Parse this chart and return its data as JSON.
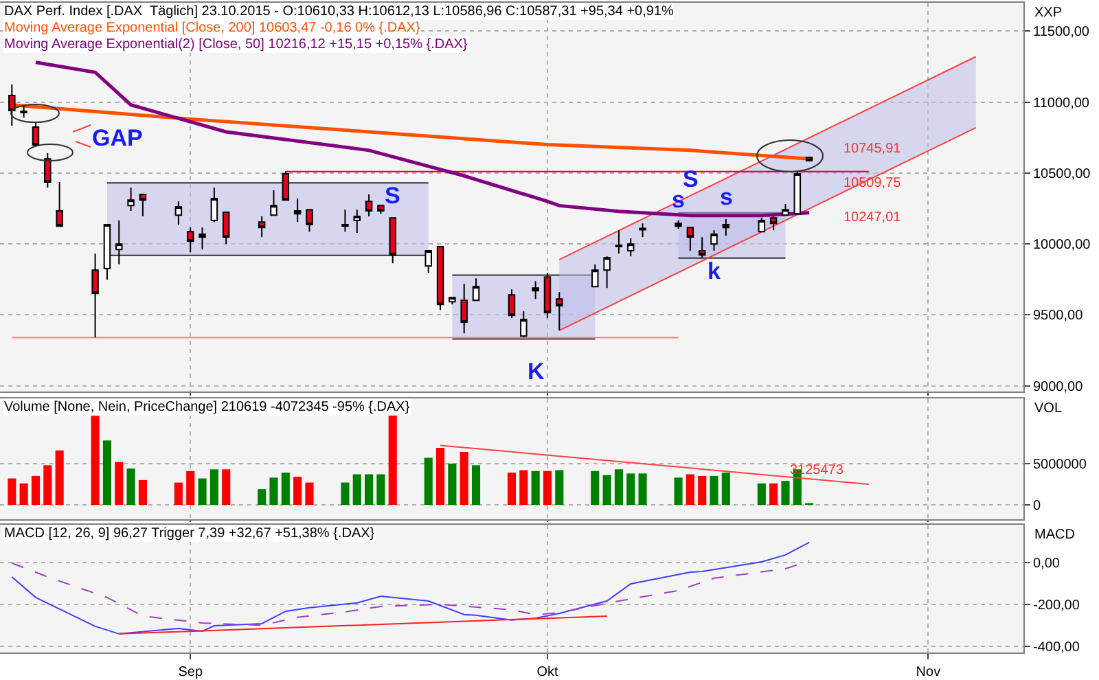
{
  "chart_data": [
    {
      "type": "candlestick",
      "title": "DAX Perf. Index [.DAX  Täglich] 23.10.2015 - O:10610,33 H:10612,13 L:10586,96 C:10587,31 +95,34 +0,91%",
      "ylabel": "XXP",
      "x": [
        "2015-08-17",
        "2015-08-18",
        "2015-08-19",
        "2015-08-20",
        "2015-08-21",
        "2015-08-24",
        "2015-08-25",
        "2015-08-26",
        "2015-08-27",
        "2015-08-28",
        "2015-08-31",
        "2015-09-01",
        "2015-09-02",
        "2015-09-03",
        "2015-09-04",
        "2015-09-07",
        "2015-09-08",
        "2015-09-09",
        "2015-09-10",
        "2015-09-11",
        "2015-09-14",
        "2015-09-15",
        "2015-09-16",
        "2015-09-17",
        "2015-09-18",
        "2015-09-21",
        "2015-09-22",
        "2015-09-23",
        "2015-09-24",
        "2015-09-25",
        "2015-09-28",
        "2015-09-29",
        "2015-09-30",
        "2015-10-01",
        "2015-10-02",
        "2015-10-05",
        "2015-10-06",
        "2015-10-07",
        "2015-10-08",
        "2015-10-09",
        "2015-10-12",
        "2015-10-13",
        "2015-10-14",
        "2015-10-15",
        "2015-10-16",
        "2015-10-19",
        "2015-10-20",
        "2015-10-21",
        "2015-10-22",
        "2015-10-23"
      ],
      "ohlc": [
        [
          11047,
          11124,
          10833,
          10940
        ],
        [
          10935,
          10980,
          10890,
          10925
        ],
        [
          10824,
          10862,
          10690,
          10698
        ],
        [
          10600,
          10640,
          10397,
          10436
        ],
        [
          10233,
          10436,
          10126,
          10126
        ],
        [
          9816,
          9932,
          9341,
          9651
        ],
        [
          9826,
          10136,
          9748,
          10136
        ],
        [
          9961,
          10165,
          9855,
          10000
        ],
        [
          10271,
          10397,
          10233,
          10310
        ],
        [
          10349,
          10349,
          10194,
          10310
        ],
        [
          10203,
          10300,
          10136,
          10262
        ],
        [
          10087,
          10116,
          9942,
          10019
        ],
        [
          10068,
          10116,
          9961,
          10048
        ],
        [
          10165,
          10397,
          10155,
          10320
        ],
        [
          10223,
          10223,
          10000,
          10048
        ],
        [
          10155,
          10194,
          10048,
          10116
        ],
        [
          10203,
          10378,
          10203,
          10271
        ],
        [
          10494,
          10514,
          10310,
          10310
        ],
        [
          10233,
          10320,
          10155,
          10213
        ],
        [
          10242,
          10242,
          10087,
          10136
        ],
        [
          10136,
          10242,
          10087,
          10126
        ],
        [
          10165,
          10242,
          10078,
          10194
        ],
        [
          10300,
          10349,
          10194,
          10233
        ],
        [
          10271,
          10271,
          10213,
          10233
        ],
        [
          10184,
          10184,
          9864,
          9922
        ],
        [
          9845,
          9952,
          9797,
          9952
        ],
        [
          9981,
          9981,
          9535,
          9574
        ],
        [
          9593,
          9622,
          9574,
          9622
        ],
        [
          9603,
          9719,
          9370,
          9448
        ],
        [
          9603,
          9758,
          9603,
          9700
        ],
        [
          9641,
          9680,
          9477,
          9496
        ],
        [
          9351,
          9525,
          9341,
          9467
        ],
        [
          9690,
          9738,
          9612,
          9670
        ],
        [
          9767,
          9796,
          9477,
          9515
        ],
        [
          9612,
          9661,
          9390,
          9564
        ],
        [
          9700,
          9855,
          9700,
          9816
        ],
        [
          9816,
          9913,
          9690,
          9903
        ],
        [
          9990,
          10097,
          9932,
          9981
        ],
        [
          9952,
          10039,
          9913,
          10000
        ],
        [
          10100,
          10145,
          10048,
          10110
        ],
        [
          10145,
          10165,
          10107,
          10126
        ],
        [
          10116,
          10116,
          9952,
          10048
        ],
        [
          9952,
          10048,
          9903,
          9922
        ],
        [
          10000,
          10097,
          9952,
          10068
        ],
        [
          10136,
          10175,
          10058,
          10116
        ],
        [
          10087,
          10184,
          10087,
          10165
        ],
        [
          10184,
          10194,
          10097,
          10145
        ],
        [
          10203,
          10281,
          10203,
          10242
        ],
        [
          10213,
          10510,
          10213,
          10494
        ],
        [
          10610,
          10612,
          10587,
          10587
        ]
      ],
      "series": [
        {
          "type": "line",
          "x": [
            "2015-08-25",
            "2015-09-21"
          ],
          "values": [
            10430,
            10430
          ],
          "lower": [
            9920,
            9920
          ],
          "upper": [
            10430,
            10430
          ],
          "color": "#333333"
        },
        {
          "type": "line",
          "x": [
            "2015-09-23",
            "2015-10-05"
          ],
          "values": [
            9780,
            9780
          ],
          "lower": [
            9330,
            9330
          ],
          "upper": [
            9780,
            9780
          ],
          "color": "#333333"
        },
        {
          "type": "line",
          "x": [
            "2015-10-12",
            "2015-10-21"
          ],
          "values": [
            10220,
            10220
          ],
          "lower": [
            9900,
            9900
          ],
          "upper": [
            10220,
            10220
          ],
          "color": "#333333"
        },
        {
          "type": "line",
          "x": [
            "2015-10-02",
            "2015-11-06"
          ],
          "values": [
            9890,
            11320
          ],
          "lower": [
            9390,
            10820
          ],
          "upper": [
            9890,
            11320
          ],
          "color": "#ff4040"
        },
        {
          "type": "line",
          "x": [
            "2015-08-25",
            "2015-09-21"
          ],
          "values": [
            9920,
            9920
          ],
          "color": "#333333"
        },
        {
          "type": "line",
          "x": [
            "2015-09-23",
            "2015-10-05"
          ],
          "values": [
            9330,
            9330
          ],
          "color": "#333333"
        },
        {
          "type": "line",
          "x": [
            "2015-10-12",
            "2015-10-21"
          ],
          "values": [
            9900,
            9900
          ],
          "color": "#333333"
        },
        {
          "type": "line",
          "x": [
            "2015-10-02",
            "2015-11-06"
          ],
          "values": [
            9390,
            10820
          ],
          "color": "#ff4040"
        },
        {
          "type": "line",
          "x": [
            "2015-09-09",
            "2015-10-28"
          ],
          "values": [
            10510,
            10510
          ],
          "color": "#e00000"
        },
        {
          "type": "line",
          "x": [
            "2015-08-17",
            "2015-10-12"
          ],
          "values": [
            9340,
            9340
          ],
          "color": "#ff8080"
        },
        {
          "type": "line",
          "name": "Moving Average Exponential [Close, 200] 10603,47 -0,16 0% {.DAX}",
          "x": [
            "2015-08-17",
            "2015-09-01",
            "2015-09-16",
            "2015-10-01",
            "2015-10-13",
            "2015-10-23"
          ],
          "values": [
            10980,
            10880,
            10790,
            10700,
            10660,
            10600
          ],
          "color": "#ff5000"
        },
        {
          "type": "line",
          "name": "Moving Average Exponential(2) [Close, 50] 10216,12 +15,15 +0,15% {.DAX}",
          "x": [
            "2015-08-19",
            "2015-08-24",
            "2015-08-27",
            "2015-09-04",
            "2015-09-16",
            "2015-09-24",
            "2015-10-01",
            "2015-10-02",
            "2015-10-07",
            "2015-10-13",
            "2015-10-19",
            "2015-10-23"
          ],
          "values": [
            11280,
            11210,
            10980,
            10790,
            10660,
            10480,
            10300,
            10270,
            10230,
            10200,
            10200,
            10220
          ],
          "color": "#800080"
        }
      ],
      "annotations": [
        "GAP",
        "S",
        "K",
        {
          "text": "S",
          "x": "2015-10-13",
          "y": 10340
        },
        {
          "text": "s",
          "x": "2015-10-12",
          "y": 10200
        },
        {
          "text": "s",
          "x": "2015-10-16",
          "y": 10220
        },
        {
          "text": "k",
          "x": "2015-10-15",
          "y": 9920
        },
        "10745,91",
        "10509,75",
        "10247,01"
      ],
      "xlim": [
        "2015-08-16",
        "2015-11-10"
      ],
      "xticks": [
        {
          "value": "2015-09-01",
          "label": null
        },
        {
          "value": "2015-10-01",
          "label": null
        },
        {
          "value": "2015-11-02",
          "label": null
        }
      ],
      "ylim": [
        8960,
        11700
      ],
      "yticks": [
        {
          "value": 9000,
          "label": "9000,00"
        },
        {
          "value": 9500,
          "label": "9500,00"
        },
        {
          "value": 10000,
          "label": "10000,00"
        },
        {
          "value": 10500,
          "label": "10500,00"
        },
        {
          "value": 11000,
          "label": "11000,00"
        },
        {
          "value": 11500,
          "label": "11500,00"
        }
      ],
      "grid": true,
      "legend": "top left",
      "tick_labels": "y"
    },
    {
      "type": "bar",
      "title": "Volume [None, Nein, PriceChange] 210619 -4072345 -95% {.DAX}",
      "ylabel": "VOL",
      "x": [
        "2015-08-17",
        "2015-08-18",
        "2015-08-19",
        "2015-08-20",
        "2015-08-21",
        "2015-08-24",
        "2015-08-25",
        "2015-08-26",
        "2015-08-27",
        "2015-08-28",
        "2015-08-31",
        "2015-09-01",
        "2015-09-02",
        "2015-09-03",
        "2015-09-04",
        "2015-09-07",
        "2015-09-08",
        "2015-09-09",
        "2015-09-10",
        "2015-09-11",
        "2015-09-14",
        "2015-09-15",
        "2015-09-16",
        "2015-09-17",
        "2015-09-18",
        "2015-09-21",
        "2015-09-22",
        "2015-09-23",
        "2015-09-24",
        "2015-09-25",
        "2015-09-28",
        "2015-09-29",
        "2015-09-30",
        "2015-10-01",
        "2015-10-02",
        "2015-10-05",
        "2015-10-06",
        "2015-10-07",
        "2015-10-08",
        "2015-10-09",
        "2015-10-12",
        "2015-10-13",
        "2015-10-14",
        "2015-10-15",
        "2015-10-16",
        "2015-10-19",
        "2015-10-20",
        "2015-10-21",
        "2015-10-22",
        "2015-10-23"
      ],
      "values": [
        3200000,
        2600000,
        3500000,
        4800000,
        6600000,
        10800000,
        7800000,
        5200000,
        4400000,
        3000000,
        2700000,
        4100000,
        3200000,
        4300000,
        4300000,
        1900000,
        3300000,
        3900000,
        3400000,
        2700000,
        2700000,
        3700000,
        3700000,
        3700000,
        11100000,
        5700000,
        6900000,
        5000000,
        6400000,
        4800000,
        3900000,
        4200000,
        4100000,
        4100000,
        4200000,
        4100000,
        3600000,
        4300000,
        3800000,
        3800000,
        3300000,
        3700000,
        3500000,
        3500000,
        3900000,
        2600000,
        2600000,
        2900000,
        4300000,
        210619
      ],
      "colors": [
        "#ff0000",
        "#ff0000",
        "#ff0000",
        "#ff0000",
        "#ff0000",
        "#ff0000",
        "#008000",
        "#ff0000",
        "#008000",
        "#ff0000",
        "#ff0000",
        "#ff0000",
        "#008000",
        "#008000",
        "#ff0000",
        "#008000",
        "#008000",
        "#008000",
        "#ff0000",
        "#ff0000",
        "#008000",
        "#008000",
        "#008000",
        "#008000",
        "#ff0000",
        "#008000",
        "#ff0000",
        "#008000",
        "#ff0000",
        "#008000",
        "#ff0000",
        "#ff0000",
        "#008000",
        "#ff0000",
        "#008000",
        "#008000",
        "#008000",
        "#008000",
        "#008000",
        "#008000",
        "#008000",
        "#ff0000",
        "#ff0000",
        "#008000",
        "#008000",
        "#008000",
        "#ff0000",
        "#008000",
        "#008000",
        "#008000"
      ],
      "series": [
        {
          "type": "line",
          "x": [
            "2015-09-22",
            "2015-10-28"
          ],
          "values": [
            7200000,
            2500000
          ],
          "color": "#ff4040"
        }
      ],
      "annotations": [
        "3125473"
      ],
      "xlim": [
        "2015-08-16",
        "2015-11-10"
      ],
      "xticks": [
        {
          "value": "2015-09-01",
          "label": null
        },
        {
          "value": "2015-10-01",
          "label": null
        },
        {
          "value": "2015-11-02",
          "label": null
        }
      ],
      "ylim": [
        -1750000,
        12900000
      ],
      "yticks": [
        0,
        5000000
      ],
      "grid": true,
      "tick_labels": "y"
    },
    {
      "type": "line",
      "title": "MACD [12, 26, 9] 96,27 Trigger 7,39 +32,67 +51,38% {.DAX}",
      "ylabel": "MACD",
      "series": [
        {
          "x": [
            "2015-08-17",
            "2015-08-19",
            "2015-08-24",
            "2015-08-26",
            "2015-08-31",
            "2015-09-02",
            "2015-09-03",
            "2015-09-07",
            "2015-09-09",
            "2015-09-11",
            "2015-09-15",
            "2015-09-17",
            "2015-09-21",
            "2015-09-24",
            "2015-09-25",
            "2015-09-28",
            "2015-09-30",
            "2015-10-02",
            "2015-10-06",
            "2015-10-08",
            "2015-10-13",
            "2015-10-14",
            "2015-10-19",
            "2015-10-21",
            "2015-10-23"
          ],
          "values": [
            -69,
            -167,
            -305,
            -341,
            -315,
            -328,
            -302,
            -292,
            -233,
            -216,
            -193,
            -161,
            -184,
            -249,
            -252,
            -275,
            -266,
            -243,
            -184,
            -102,
            -46,
            -43,
            3,
            36,
            96
          ],
          "color": "#4040ff"
        },
        {
          "x": [
            "2015-08-17",
            "2015-08-20",
            "2015-08-25",
            "2015-08-28",
            "2015-09-02",
            "2015-09-07",
            "2015-09-10",
            "2015-09-14",
            "2015-09-17",
            "2015-09-22",
            "2015-09-28",
            "2015-09-30",
            "2015-10-02",
            "2015-10-07",
            "2015-10-12",
            "2015-10-15",
            "2015-10-21",
            "2015-10-23"
          ],
          "values": [
            -3,
            -69,
            -167,
            -256,
            -289,
            -300,
            -262,
            -236,
            -210,
            -200,
            -226,
            -249,
            -240,
            -184,
            -134,
            -75,
            -30,
            7
          ],
          "color": "#a040c0",
          "line_style": "dashed"
        },
        {
          "x": [
            "2015-08-26",
            "2015-10-06"
          ],
          "values": [
            -341,
            -256
          ],
          "color": "#ff2020"
        }
      ],
      "xlim": [
        "2015-08-16",
        "2015-11-10"
      ],
      "xticks": [
        {
          "value": "2015-09-01",
          "label": "Sep"
        },
        {
          "value": "2015-10-01",
          "label": "Okt"
        },
        {
          "value": "2015-11-02",
          "label": "Nov"
        }
      ],
      "ylim": [
        -430,
        180
      ],
      "yticks": [
        {
          "value": 0,
          "label": "0,00"
        },
        {
          "value": -200,
          "label": "-200,00"
        },
        {
          "value": -400,
          "label": "-400,00"
        }
      ],
      "grid": true
    }
  ]
}
